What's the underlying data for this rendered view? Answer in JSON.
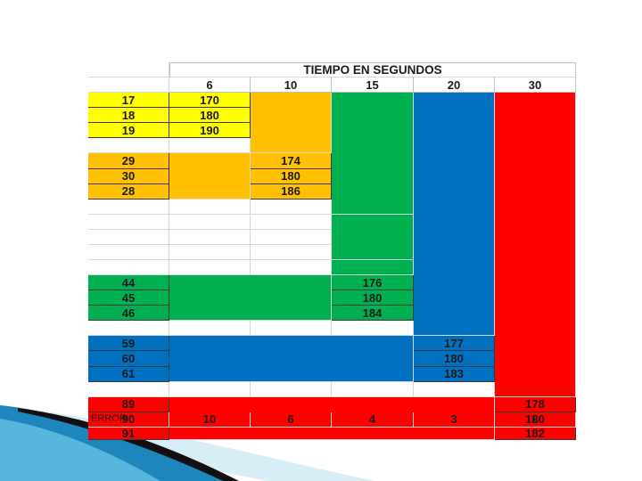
{
  "table": {
    "title": "TIEMPO EN SEGUNDOS",
    "time_headers": [
      "6",
      "10",
      "15",
      "20",
      "30"
    ],
    "groups": [
      {
        "color": "#ffff00",
        "labels": [
          "17",
          "18",
          "19"
        ],
        "values": [
          "170",
          "180",
          "190"
        ]
      },
      {
        "color": "#ffc000",
        "labels": [
          "29",
          "30",
          "28"
        ],
        "values": [
          "174",
          "180",
          "186"
        ]
      },
      {
        "color": "#00b050",
        "labels": [
          "44",
          "45",
          "46"
        ],
        "values": [
          "176",
          "180",
          "184"
        ]
      },
      {
        "color": "#0070c0",
        "labels": [
          "59",
          "60",
          "61"
        ],
        "values": [
          "177",
          "180",
          "183"
        ]
      },
      {
        "color": "#ff0000",
        "labels": [
          "89",
          "90",
          "91"
        ],
        "values": [
          "178",
          "180",
          "182"
        ]
      }
    ],
    "error_label": "ERROR",
    "error_values": [
      "10",
      "6",
      "4",
      "3",
      "2"
    ]
  },
  "decor": {
    "swoosh_colors": [
      "#0a6fa8",
      "#5bb8e0",
      "#111111",
      "#cfe8f5"
    ]
  }
}
